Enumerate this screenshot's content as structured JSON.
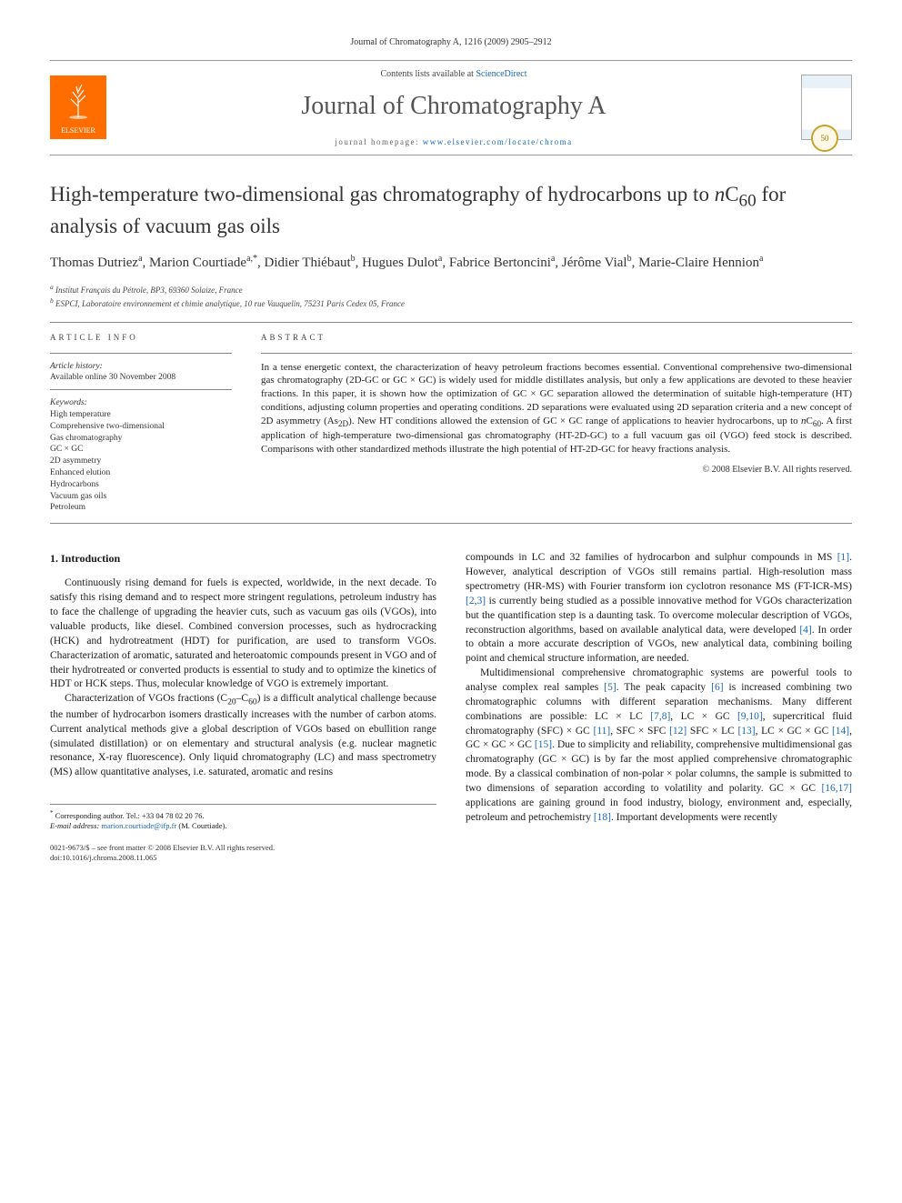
{
  "header": {
    "journal_ref": "Journal of Chromatography A, 1216 (2009) 2905–2912",
    "contents_prefix": "Contents lists available at ",
    "contents_link": "ScienceDirect",
    "journal_name": "Journal of Chromatography A",
    "homepage_prefix": "journal homepage: ",
    "homepage_url": "www.elsevier.com/locate/chroma",
    "publisher_logo_label": "ELSEVIER"
  },
  "title_html": "High-temperature two-dimensional gas chromatography of hydrocarbons up to <i>n</i>C<sub>60</sub> for analysis of vacuum gas oils",
  "authors_html": "Thomas Dutriez<sup>a</sup>, Marion Courtiade<sup>a,*</sup>, Didier Thiébaut<sup>b</sup>, Hugues Dulot<sup>a</sup>, Fabrice Bertoncini<sup>a</sup>, Jérôme Vial<sup>b</sup>, Marie-Claire Hennion<sup>a</sup>",
  "affiliations": [
    {
      "sup": "a",
      "text": "Institut Français du Pétrole, BP3, 69360 Solaize, France"
    },
    {
      "sup": "b",
      "text": "ESPCI, Laboratoire environnement et chimie analytique, 10 rue Vauquelin, 75231 Paris Cedex 05, France"
    }
  ],
  "info_label": "ARTICLE INFO",
  "abstract_label": "ABSTRACT",
  "history": {
    "label": "Article history:",
    "line": "Available online 30 November 2008"
  },
  "keywords": {
    "label": "Keywords:",
    "items": [
      "High temperature",
      "Comprehensive two-dimensional",
      "Gas chromatography",
      "GC × GC",
      "2D asymmetry",
      "Enhanced elution",
      "Hydrocarbons",
      "Vacuum gas oils",
      "Petroleum"
    ]
  },
  "abstract_html": "In a tense energetic context, the characterization of heavy petroleum fractions becomes essential. Conventional comprehensive two-dimensional gas chromatography (2D-GC or GC × GC) is widely used for middle distillates analysis, but only a few applications are devoted to these heavier fractions. In this paper, it is shown how the optimization of GC × GC separation allowed the determination of suitable high-temperature (HT) conditions, adjusting column properties and operating conditions. 2D separations were evaluated using 2D separation criteria and a new concept of 2D asymmetry (As<sub>2D</sub>). New HT conditions allowed the extension of GC × GC range of applications to heavier hydrocarbons, up to <i>n</i>C<sub>60</sub>. A first application of high-temperature two-dimensional gas chromatography (HT-2D-GC) to a full vacuum gas oil (VGO) feed stock is described. Comparisons with other standardized methods illustrate the high potential of HT-2D-GC for heavy fractions analysis.",
  "copyright": "© 2008 Elsevier B.V. All rights reserved.",
  "section1": "1. Introduction",
  "col_left_html": "<p>Continuously rising demand for fuels is expected, worldwide, in the next decade. To satisfy this rising demand and to respect more stringent regulations, petroleum industry has to face the challenge of upgrading the heavier cuts, such as vacuum gas oils (VGOs), into valuable products, like diesel. Combined conversion processes, such as hydrocracking (HCK) and hydrotreatment (HDT) for purification, are used to transform VGOs. Characterization of aromatic, saturated and heteroatomic compounds present in VGO and of their hydrotreated or converted products is essential to study and to optimize the kinetics of HDT or HCK steps. Thus, molecular knowledge of VGO is extremely important.</p><p>Characterization of VGOs fractions (C<sub>20</sub>–C<sub>60</sub>) is a difficult analytical challenge because the number of hydrocarbon isomers drastically increases with the number of carbon atoms. Current analytical methods give a global description of VGOs based on ebullition range (simulated distillation) or on elementary and structural analysis (e.g. nuclear magnetic resonance, X-ray fluorescence). Only liquid chromatography (LC) and mass spectrometry (MS) allow quantitative analyses, i.e. saturated, aromatic and resins</p>",
  "col_right_html": "<p style='text-indent:0'>compounds in LC and 32 families of hydrocarbon and sulphur compounds in MS <a class='ref' href='#'>[1]</a>. However, analytical description of VGOs still remains partial. High-resolution mass spectrometry (HR-MS) with Fourier transform ion cyclotron resonance MS (FT-ICR-MS) <a class='ref' href='#'>[2,3]</a> is currently being studied as a possible innovative method for VGOs characterization but the quantification step is a daunting task. To overcome molecular description of VGOs, reconstruction algorithms, based on available analytical data, were developed <a class='ref' href='#'>[4]</a>. In order to obtain a more accurate description of VGOs, new analytical data, combining boiling point and chemical structure information, are needed.</p><p>Multidimensional comprehensive chromatographic systems are powerful tools to analyse complex real samples <a class='ref' href='#'>[5]</a>. The peak capacity <a class='ref' href='#'>[6]</a> is increased combining two chromatographic columns with different separation mechanisms. Many different combinations are possible: LC × LC <a class='ref' href='#'>[7,8]</a>, LC × GC <a class='ref' href='#'>[9,10]</a>, supercritical fluid chromatography (SFC) × GC <a class='ref' href='#'>[11]</a>, SFC × SFC <a class='ref' href='#'>[12]</a> SFC × LC <a class='ref' href='#'>[13]</a>, LC × GC × GC <a class='ref' href='#'>[14]</a>, GC × GC × GC <a class='ref' href='#'>[15]</a>. Due to simplicity and reliability, comprehensive multidimensional gas chromatography (GC × GC) is by far the most applied comprehensive chromatographic mode. By a classical combination of non-polar × polar columns, the sample is submitted to two dimensions of separation according to volatility and polarity. GC × GC <a class='ref' href='#'>[16,17]</a> applications are gaining ground in food industry, biology, environment and, especially, petroleum and petrochemistry <a class='ref' href='#'>[18]</a>. Important developments were recently</p>",
  "corr": {
    "star": "*",
    "text": "Corresponding author. Tel.: +33 04 78 02 20 76.",
    "email_label": "E-mail address:",
    "email": "marion.courtiade@ifp.fr",
    "email_tail": "(M. Courtiade)."
  },
  "footer": {
    "line1": "0021-9673/$ – see front matter © 2008 Elsevier B.V. All rights reserved.",
    "line2": "doi:10.1016/j.chroma.2008.11.065"
  },
  "colors": {
    "link": "#1768b3",
    "elsevier_orange": "#ff6c00",
    "rule": "#888888"
  }
}
